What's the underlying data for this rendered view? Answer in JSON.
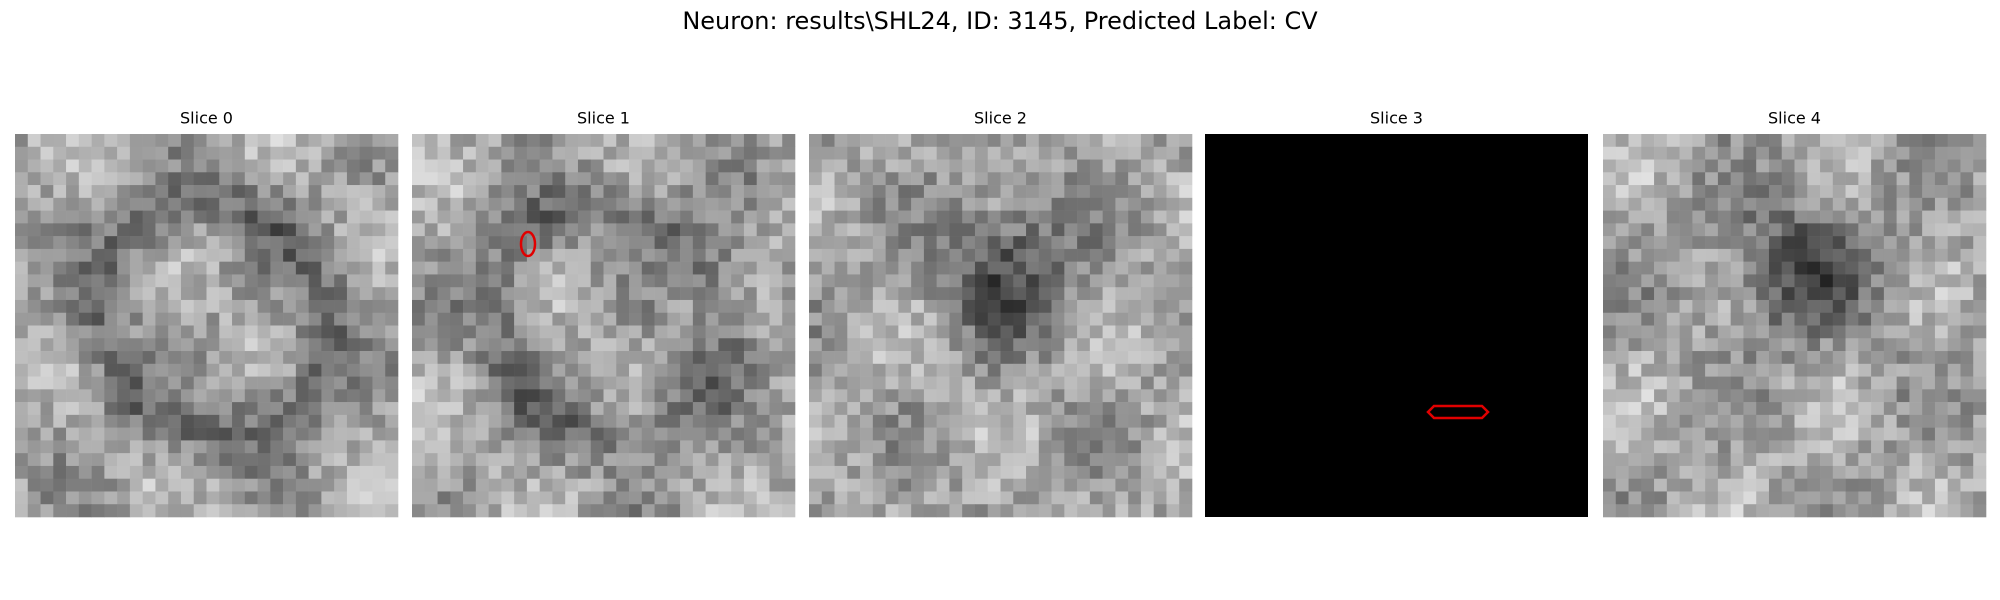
{
  "title": "Neuron: results\\SHL24, ID: 3145, Predicted Label: CV",
  "panels": [
    {
      "title": "Slice 0"
    },
    {
      "title": "Slice 1"
    },
    {
      "title": "Slice 2"
    },
    {
      "title": "Slice 3"
    },
    {
      "title": "Slice 4"
    }
  ]
}
